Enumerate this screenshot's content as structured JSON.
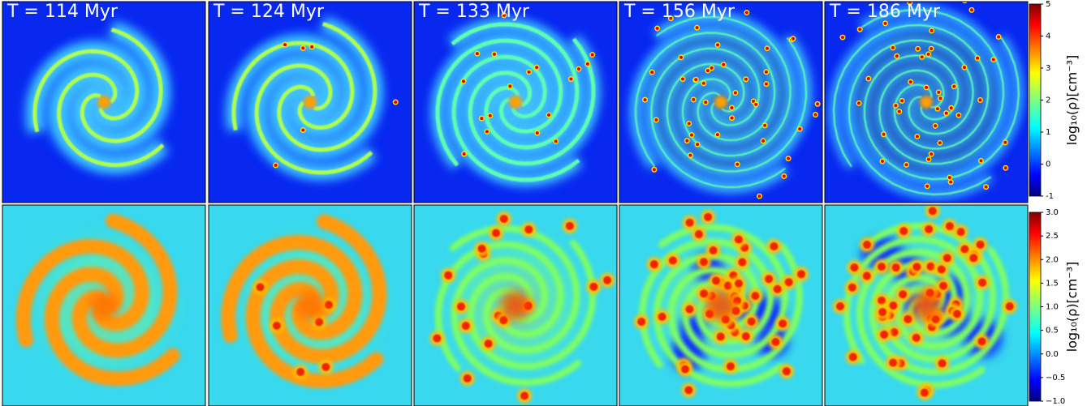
{
  "panels": [
    "T = 114 Myr",
    "T = 124 Myr",
    "T = 133 Myr",
    "T = 156 Myr",
    "T = 186 Myr"
  ],
  "colorbars": [
    {
      "label": "log₁₀(ρ)[cm⁻³]",
      "lim": [
        -1,
        5
      ],
      "ticks": [
        -1,
        0,
        1,
        2,
        3,
        4,
        5
      ]
    },
    {
      "label": "log₁₀(ρ)[cm⁻³]",
      "lim": [
        -1,
        3
      ],
      "ticks": [
        {
          "value": -1,
          "label": "−1.0"
        },
        {
          "value": -0.5,
          "label": "−0.5"
        },
        {
          "value": 0,
          "label": "0.0"
        },
        {
          "value": 0.5,
          "label": "0.5"
        },
        {
          "value": 1,
          "label": "1.0"
        },
        {
          "value": 1.5,
          "label": "1.5"
        },
        {
          "value": 2,
          "label": "2.0"
        },
        {
          "value": 2.5,
          "label": "2.5"
        },
        {
          "value": 3,
          "label": "3.0"
        }
      ]
    }
  ]
}
